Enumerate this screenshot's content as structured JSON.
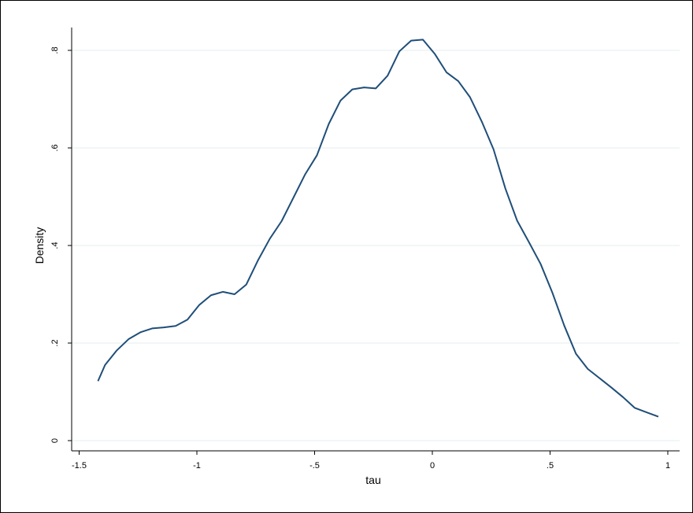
{
  "chart_data": {
    "type": "line",
    "title": "",
    "xlabel": "tau",
    "ylabel": "Density",
    "xlim": [
      -1.5,
      1
    ],
    "ylim": [
      0,
      0.8
    ],
    "xticks": [
      {
        "value": -1.5,
        "label": "-1.5"
      },
      {
        "value": -1,
        "label": "-1"
      },
      {
        "value": -0.5,
        "label": "-.5"
      },
      {
        "value": 0,
        "label": "0"
      },
      {
        "value": 0.5,
        "label": ".5"
      },
      {
        "value": 1,
        "label": "1"
      }
    ],
    "yticks": [
      {
        "value": 0,
        "label": "0"
      },
      {
        "value": 0.2,
        "label": ".2"
      },
      {
        "value": 0.4,
        "label": ".4"
      },
      {
        "value": 0.6,
        "label": ".6"
      },
      {
        "value": 0.8,
        "label": ".8"
      }
    ],
    "grid": "horizontal",
    "line_color": "#1f4e79",
    "grid_color": "#e3ecef",
    "series": [
      {
        "x": [
          -1.42,
          -1.39,
          -1.34,
          -1.29,
          -1.24,
          -1.19,
          -1.14,
          -1.09,
          -1.04,
          -0.99,
          -0.94,
          -0.89,
          -0.84,
          -0.79,
          -0.74,
          -0.69,
          -0.64,
          -0.59,
          -0.54,
          -0.49,
          -0.44,
          -0.39,
          -0.34,
          -0.29,
          -0.24,
          -0.19,
          -0.14,
          -0.09,
          -0.04,
          0.01,
          0.06,
          0.11,
          0.16,
          0.21,
          0.26,
          0.31,
          0.36,
          0.41,
          0.46,
          0.51,
          0.56,
          0.61,
          0.66,
          0.71,
          0.76,
          0.81,
          0.86,
          0.91,
          0.96
        ],
        "y": [
          0.122,
          0.155,
          0.185,
          0.208,
          0.222,
          0.23,
          0.232,
          0.235,
          0.248,
          0.278,
          0.298,
          0.305,
          0.3,
          0.32,
          0.37,
          0.414,
          0.45,
          0.498,
          0.546,
          0.585,
          0.649,
          0.697,
          0.72,
          0.724,
          0.722,
          0.748,
          0.798,
          0.82,
          0.822,
          0.793,
          0.755,
          0.737,
          0.704,
          0.654,
          0.597,
          0.517,
          0.451,
          0.407,
          0.362,
          0.303,
          0.236,
          0.178,
          0.147,
          0.128,
          0.109,
          0.089,
          0.067,
          0.058,
          0.049
        ]
      }
    ]
  }
}
